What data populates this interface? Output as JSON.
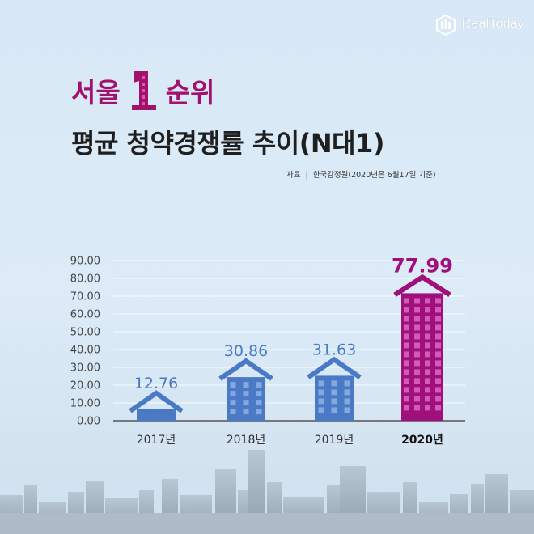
{
  "brand": {
    "name": "RealToday",
    "logo_icon": "realtoday-logo-icon"
  },
  "header": {
    "title_prefix": "서울",
    "title_number": "1",
    "title_suffix": "순위",
    "subtitle": "평균 청약경쟁률 추이(N대1)",
    "source_label": "자료",
    "source_separator": "|",
    "source_text": "한국감정원(2020년은 6월17일 기준)"
  },
  "colors": {
    "accent": "#a2126d",
    "blue_building": "#4a79c6",
    "highlight_building": "#a0107c",
    "axis_text": "#444444",
    "value_blue": "#4a79c6"
  },
  "chart_data": {
    "type": "bar",
    "categories": [
      "2017년",
      "2018년",
      "2019년",
      "2020년"
    ],
    "values": [
      12.76,
      30.86,
      31.63,
      77.99
    ],
    "value_labels": [
      "12.76",
      "30.86",
      "31.63",
      "77.99"
    ],
    "highlight_index": 3,
    "ylim": [
      0,
      90
    ],
    "yticks": [
      "0.00",
      "10.00",
      "20.00",
      "30.00",
      "40.00",
      "50.00",
      "60.00",
      "70.00",
      "80.00",
      "90.00"
    ],
    "grid": true,
    "title": "",
    "xlabel": "",
    "ylabel": ""
  }
}
